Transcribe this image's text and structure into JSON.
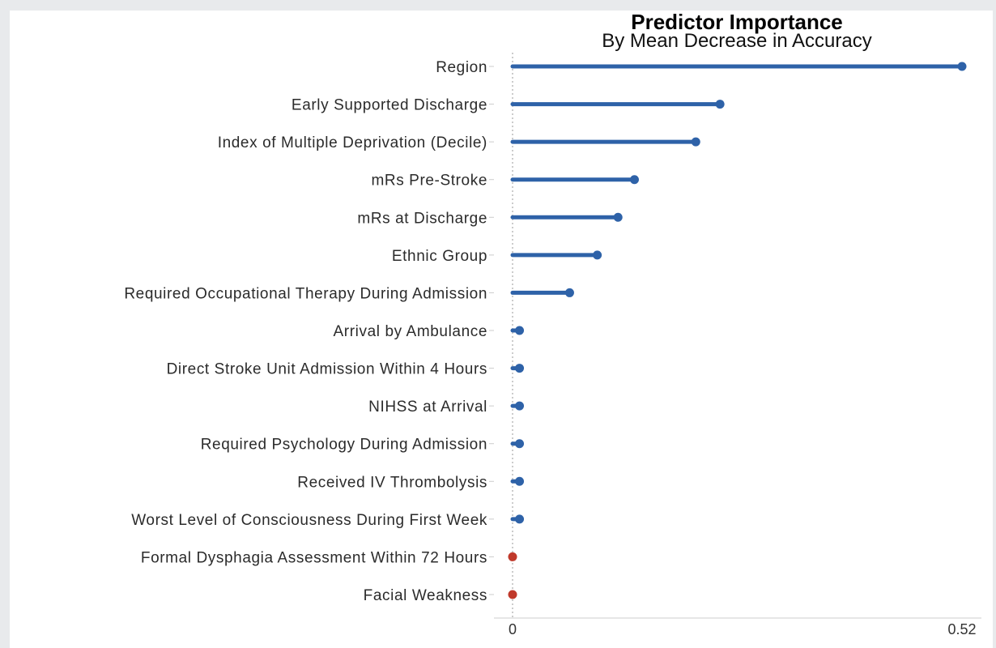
{
  "chart_data": {
    "type": "lollipop",
    "title": "Predictor Importance",
    "subtitle": "By Mean Decrease in Accuracy",
    "xlabel": "",
    "ylabel": "",
    "xlim": [
      0,
      0.52
    ],
    "x_tick_labels": [
      "0",
      "0.52"
    ],
    "grid": false,
    "categories": [
      "Region",
      "Early Supported Discharge",
      "Index of Multiple Deprivation (Decile)",
      "mRs Pre-Stroke",
      "mRs at Discharge",
      "Ethnic Group",
      "Required Occupational Therapy During Admission",
      "Arrival by Ambulance",
      "Direct Stroke Unit Admission Within 4 Hours",
      "NIHSS at Arrival",
      "Required Psychology During Admission",
      "Received IV Thrombolysis",
      "Worst Level of Consciousness During First Week",
      "Formal Dysphagia Assessment Within 72 Hours",
      "Facial Weakness"
    ],
    "values": [
      0.52,
      0.24,
      0.212,
      0.141,
      0.122,
      0.098,
      0.066,
      0.008,
      0.008,
      0.008,
      0.008,
      0.008,
      0.008,
      0.0,
      0.0
    ],
    "colors": {
      "positive": "#2e62a8",
      "nonpositive": "#c0392b",
      "zero_line": "#9a9a9a",
      "axis": "#cccccc"
    }
  }
}
